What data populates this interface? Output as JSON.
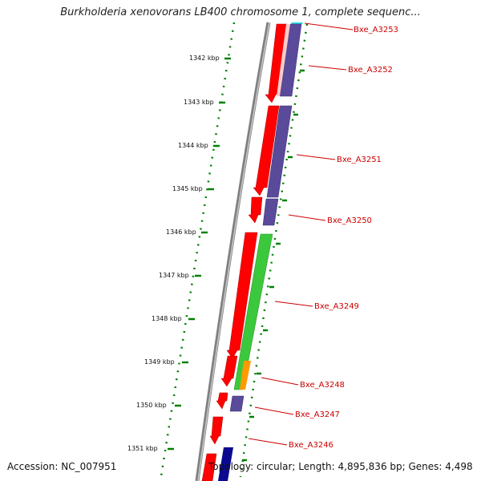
{
  "title": "Burkholderia xenovorans LB400 chromosome 1, complete sequenc...",
  "footer": {
    "accession": "Accession: NC_007951",
    "topology": "Topology: circular; Length: 4,895,836 bp; Genes: 4,498"
  },
  "ruler_labels": [
    "1342 kbp",
    "1343 kbp",
    "1344 kbp",
    "1345 kbp",
    "1346 kbp",
    "1347 kbp",
    "1348 kbp",
    "1349 kbp",
    "1350 kbp",
    "1351 kbp"
  ],
  "genes": [
    "Bxe_A3253",
    "Bxe_A3252",
    "Bxe_A3251",
    "Bxe_A3250",
    "Bxe_A3249",
    "Bxe_A3248",
    "Bxe_A3247",
    "Bxe_A3246"
  ],
  "colors": {
    "backbone": "#808080",
    "ruler": "#008000",
    "cds_red": "#ff0000",
    "cds_purple": "#5a4a9a",
    "cds_green": "#3cc83c",
    "cds_orange": "#ff9900",
    "cds_navy": "#0a0a90",
    "cds_cyan": "#22dddd",
    "label": "#cc0000"
  }
}
